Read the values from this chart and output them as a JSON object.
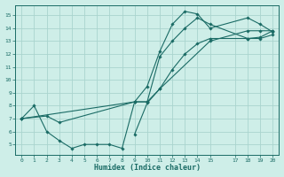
{
  "xlabel": "Humidex (Indice chaleur)",
  "background_color": "#ceeee8",
  "grid_color": "#aad4ce",
  "line_color": "#1a6b65",
  "xlim": [
    -0.5,
    20.5
  ],
  "ylim": [
    4.2,
    15.8
  ],
  "xticks": [
    0,
    1,
    2,
    3,
    4,
    5,
    6,
    7,
    8,
    9,
    10,
    11,
    12,
    13,
    14,
    15,
    17,
    18,
    19,
    20
  ],
  "yticks": [
    5,
    6,
    7,
    8,
    9,
    10,
    11,
    12,
    13,
    14,
    15
  ],
  "series": [
    {
      "x": [
        0,
        1,
        2,
        3,
        4,
        5,
        6,
        7,
        8,
        9,
        10,
        11,
        12,
        13,
        14,
        15,
        18,
        19,
        20
      ],
      "y": [
        7,
        8,
        6,
        5.3,
        4.7,
        5.0,
        5.0,
        5.0,
        4.7,
        8.3,
        9.5,
        12.2,
        14.3,
        15.3,
        15.1,
        14.0,
        14.8,
        14.3,
        13.7
      ]
    },
    {
      "x": [
        0,
        2,
        3,
        9,
        10,
        11,
        12,
        13,
        14,
        15,
        18,
        19,
        20
      ],
      "y": [
        7,
        7.2,
        6.7,
        8.3,
        8.3,
        11.8,
        13.0,
        14.0,
        14.8,
        14.3,
        13.2,
        13.2,
        13.5
      ]
    },
    {
      "x": [
        0,
        9,
        10,
        11,
        12,
        13,
        14,
        15,
        18,
        19,
        20
      ],
      "y": [
        7,
        8.3,
        8.3,
        9.3,
        10.8,
        12.0,
        12.8,
        13.2,
        13.2,
        13.3,
        13.8
      ]
    },
    {
      "x": [
        9,
        10,
        11,
        15,
        18,
        19,
        20
      ],
      "y": [
        5.8,
        8.2,
        9.3,
        13.0,
        13.8,
        13.8,
        13.8
      ]
    }
  ]
}
